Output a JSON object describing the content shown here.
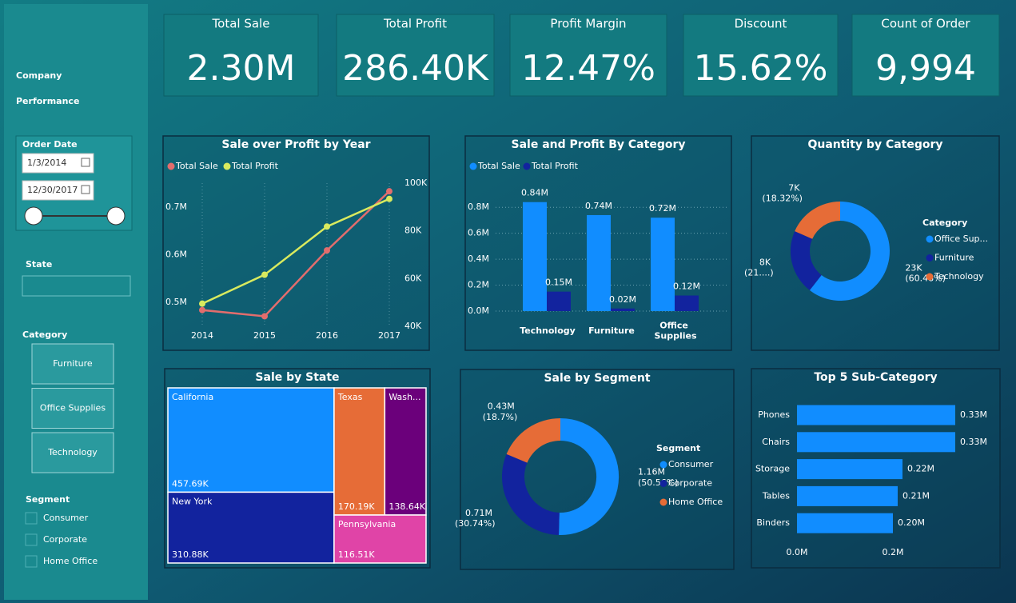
{
  "sidebar": {
    "title_lines": [
      "Company",
      "Performance"
    ],
    "date_filter": {
      "label": "Order Date",
      "start": "1/3/2014",
      "end": "12/30/2017"
    },
    "state_filter": {
      "label": "State"
    },
    "category_filter": {
      "label": "Category",
      "options": [
        "Furniture",
        "Office Supplies",
        "Technology"
      ]
    },
    "segment_filter": {
      "label": "Segment",
      "options": [
        "Consumer",
        "Corporate",
        "Home Office"
      ]
    }
  },
  "kpis": [
    {
      "title": "Total Sale",
      "value": "2.30M"
    },
    {
      "title": "Total Profit",
      "value": "286.40K"
    },
    {
      "title": "Profit Margin",
      "value": "12.47%"
    },
    {
      "title": "Discount",
      "value": "15.62%"
    },
    {
      "title": "Count of Order",
      "value": "9,994"
    }
  ],
  "chart_data": [
    {
      "type": "line",
      "title": "Sale over Profit by Year",
      "categories": [
        "2014",
        "2015",
        "2016",
        "2017"
      ],
      "series": [
        {
          "name": "Total Sale",
          "color": "#e36d6d",
          "values": [
            0.484,
            0.471,
            0.609,
            0.733
          ]
        },
        {
          "name": "Total Profit",
          "color": "#d9ea5e",
          "axis": "y2",
          "values": [
            49.5,
            61.6,
            81.8,
            93.4
          ]
        }
      ],
      "ylim": [
        0.45,
        0.75
      ],
      "yticks": [
        {
          "value": 0.5,
          "label": "0.5M"
        },
        {
          "value": 0.6,
          "label": "0.6M"
        },
        {
          "value": 0.7,
          "label": "0.7M"
        }
      ],
      "y2lim": [
        40,
        100
      ],
      "y2ticks": [
        {
          "value": 40,
          "label": "40K"
        },
        {
          "value": 60,
          "label": "60K"
        },
        {
          "value": 80,
          "label": "80K"
        },
        {
          "value": 100,
          "label": "100K"
        }
      ]
    },
    {
      "type": "bar",
      "title": "Sale and Profit By Category",
      "categories": [
        "Technology",
        "Furniture",
        "Office Supplies"
      ],
      "series": [
        {
          "name": "Total Sale",
          "color": "#118dff",
          "values": [
            0.84,
            0.74,
            0.72
          ],
          "value_labels": [
            "0.84M",
            "0.74M",
            "0.72M"
          ]
        },
        {
          "name": "Total Profit",
          "color": "#12239e",
          "values": [
            0.15,
            0.02,
            0.12
          ],
          "value_labels": [
            "0.15M",
            "0.02M",
            "0.12M"
          ]
        }
      ],
      "ylim": [
        0,
        0.9
      ],
      "yticks": [
        {
          "value": 0,
          "label": "0.0M"
        },
        {
          "value": 0.2,
          "label": "0.2M"
        },
        {
          "value": 0.4,
          "label": "0.4M"
        },
        {
          "value": 0.6,
          "label": "0.6M"
        },
        {
          "value": 0.8,
          "label": "0.8M"
        }
      ],
      "grid": true
    },
    {
      "type": "pie",
      "title": "Quantity by Category",
      "legend_title": "Category",
      "categories": [
        "Office Sup...",
        "Furniture",
        "Technology"
      ],
      "colors": [
        "#118dff",
        "#12239e",
        "#e66c37"
      ],
      "values": [
        23,
        8,
        7
      ],
      "value_labels": [
        "23K (60.48%)",
        "8K (21....)",
        "7K (18.32%)"
      ]
    },
    {
      "type": "treemap",
      "title": "Sale by State",
      "categories": [
        "California",
        "New York",
        "Texas",
        "Wash...",
        "Pennsylvania"
      ],
      "colors": [
        "#118dff",
        "#12239e",
        "#e66c37",
        "#6b007b",
        "#e044a7"
      ],
      "values": [
        457.69,
        310.88,
        170.19,
        138.64,
        116.51
      ],
      "value_labels": [
        "457.69K",
        "310.88K",
        "170.19K",
        "138.64K",
        "116.51K"
      ]
    },
    {
      "type": "pie",
      "title": "Sale by Segment",
      "legend_title": "Segment",
      "categories": [
        "Consumer",
        "Corporate",
        "Home Office"
      ],
      "colors": [
        "#118dff",
        "#12239e",
        "#e66c37"
      ],
      "values": [
        1.16,
        0.71,
        0.43
      ],
      "value_labels": [
        "1.16M (50.56%)",
        "0.71M (30.74%)",
        "0.43M (18.7%)"
      ]
    },
    {
      "type": "hbar",
      "title": "Top 5 Sub-Category",
      "categories": [
        "Phones",
        "Chairs",
        "Storage",
        "Tables",
        "Binders"
      ],
      "color": "#118dff",
      "values": [
        0.33,
        0.33,
        0.22,
        0.21,
        0.2
      ],
      "value_labels": [
        "0.33M",
        "0.33M",
        "0.22M",
        "0.21M",
        "0.20M"
      ],
      "xlim": [
        0,
        0.34
      ],
      "xticks": [
        {
          "value": 0,
          "label": "0.0M"
        },
        {
          "value": 0.2,
          "label": "0.2M"
        }
      ]
    }
  ]
}
